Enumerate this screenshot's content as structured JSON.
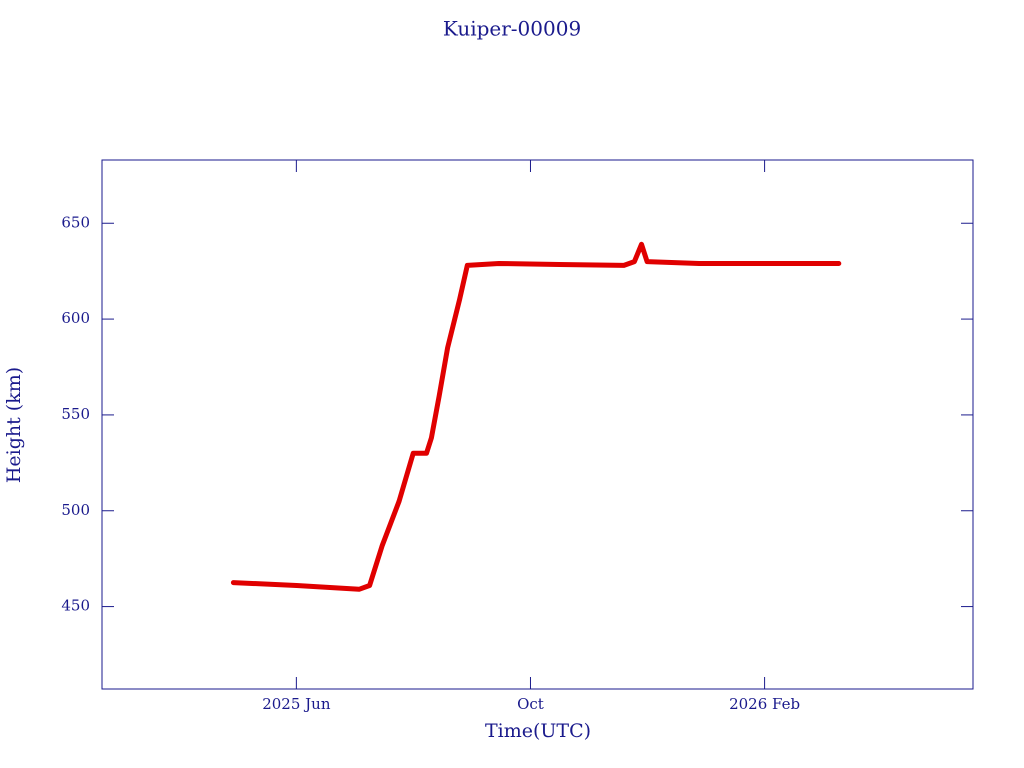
{
  "chart_data": {
    "type": "line",
    "title": "Kuiper-00009",
    "x_label": "Time(UTC)",
    "y_label": "Height (km)",
    "xlim": [
      2025.14,
      2026.38
    ],
    "xticks": [
      {
        "value": 2025.4167,
        "label": "2025 Jun"
      },
      {
        "value": 2025.75,
        "label": "Oct"
      },
      {
        "value": 2026.0833,
        "label": "2026 Feb"
      }
    ],
    "ylim": [
      407,
      683
    ],
    "yticks": [
      450,
      500,
      550,
      600,
      650
    ],
    "series": [
      {
        "color": "#e00000",
        "x": [
          2025.327,
          2025.417,
          2025.506,
          2025.521,
          2025.539,
          2025.563,
          2025.583,
          2025.602,
          2025.609,
          2025.62,
          2025.632,
          2025.649,
          2025.66,
          2025.705,
          2025.791,
          2025.883,
          2025.898,
          2025.908,
          2025.916,
          2025.99,
          2026.104,
          2026.189
        ],
        "values": [
          462.5,
          461,
          459,
          461,
          482,
          505,
          530,
          530,
          538,
          560,
          585,
          610,
          628,
          629,
          628.5,
          628,
          630,
          639,
          630,
          629,
          629,
          629
        ]
      }
    ]
  }
}
